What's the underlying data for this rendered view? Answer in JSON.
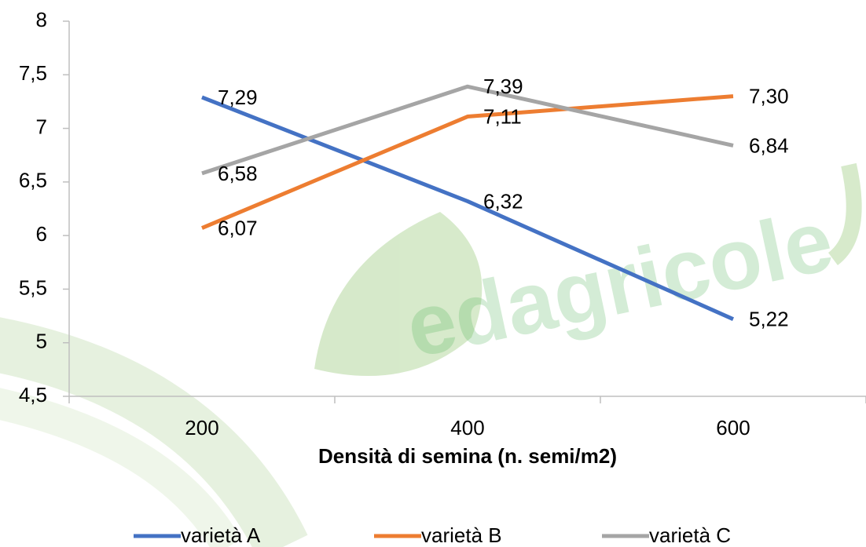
{
  "chart_data": {
    "type": "line",
    "x_label": "Densità di semina (n. semi/m2)",
    "watermark": "edagricole",
    "categories": [
      "200",
      "400",
      "600"
    ],
    "series": [
      {
        "name": "varietà A",
        "color": "#4472c4",
        "values": [
          7.29,
          6.32,
          5.22
        ],
        "value_labels": [
          "7,29",
          "6,32",
          "5,22"
        ]
      },
      {
        "name": "varietà B",
        "color": "#ed7d31",
        "values": [
          6.07,
          7.11,
          7.3
        ],
        "value_labels": [
          "6,07",
          "7,11",
          "7,30"
        ]
      },
      {
        "name": "varietà C",
        "color": "#a5a5a5",
        "values": [
          6.58,
          7.39,
          6.84
        ],
        "value_labels": [
          "6,58",
          "7,39",
          "6,84"
        ]
      }
    ],
    "ylim": [
      4.5,
      8
    ],
    "yticks": [
      {
        "value": 4.5,
        "label": "4,5"
      },
      5,
      {
        "value": 5.5,
        "label": "5,5"
      },
      6,
      {
        "value": 6.5,
        "label": "6,5"
      },
      7,
      {
        "value": 7.5,
        "label": "7,5"
      },
      8
    ],
    "grid": false,
    "legend": "bottom"
  }
}
